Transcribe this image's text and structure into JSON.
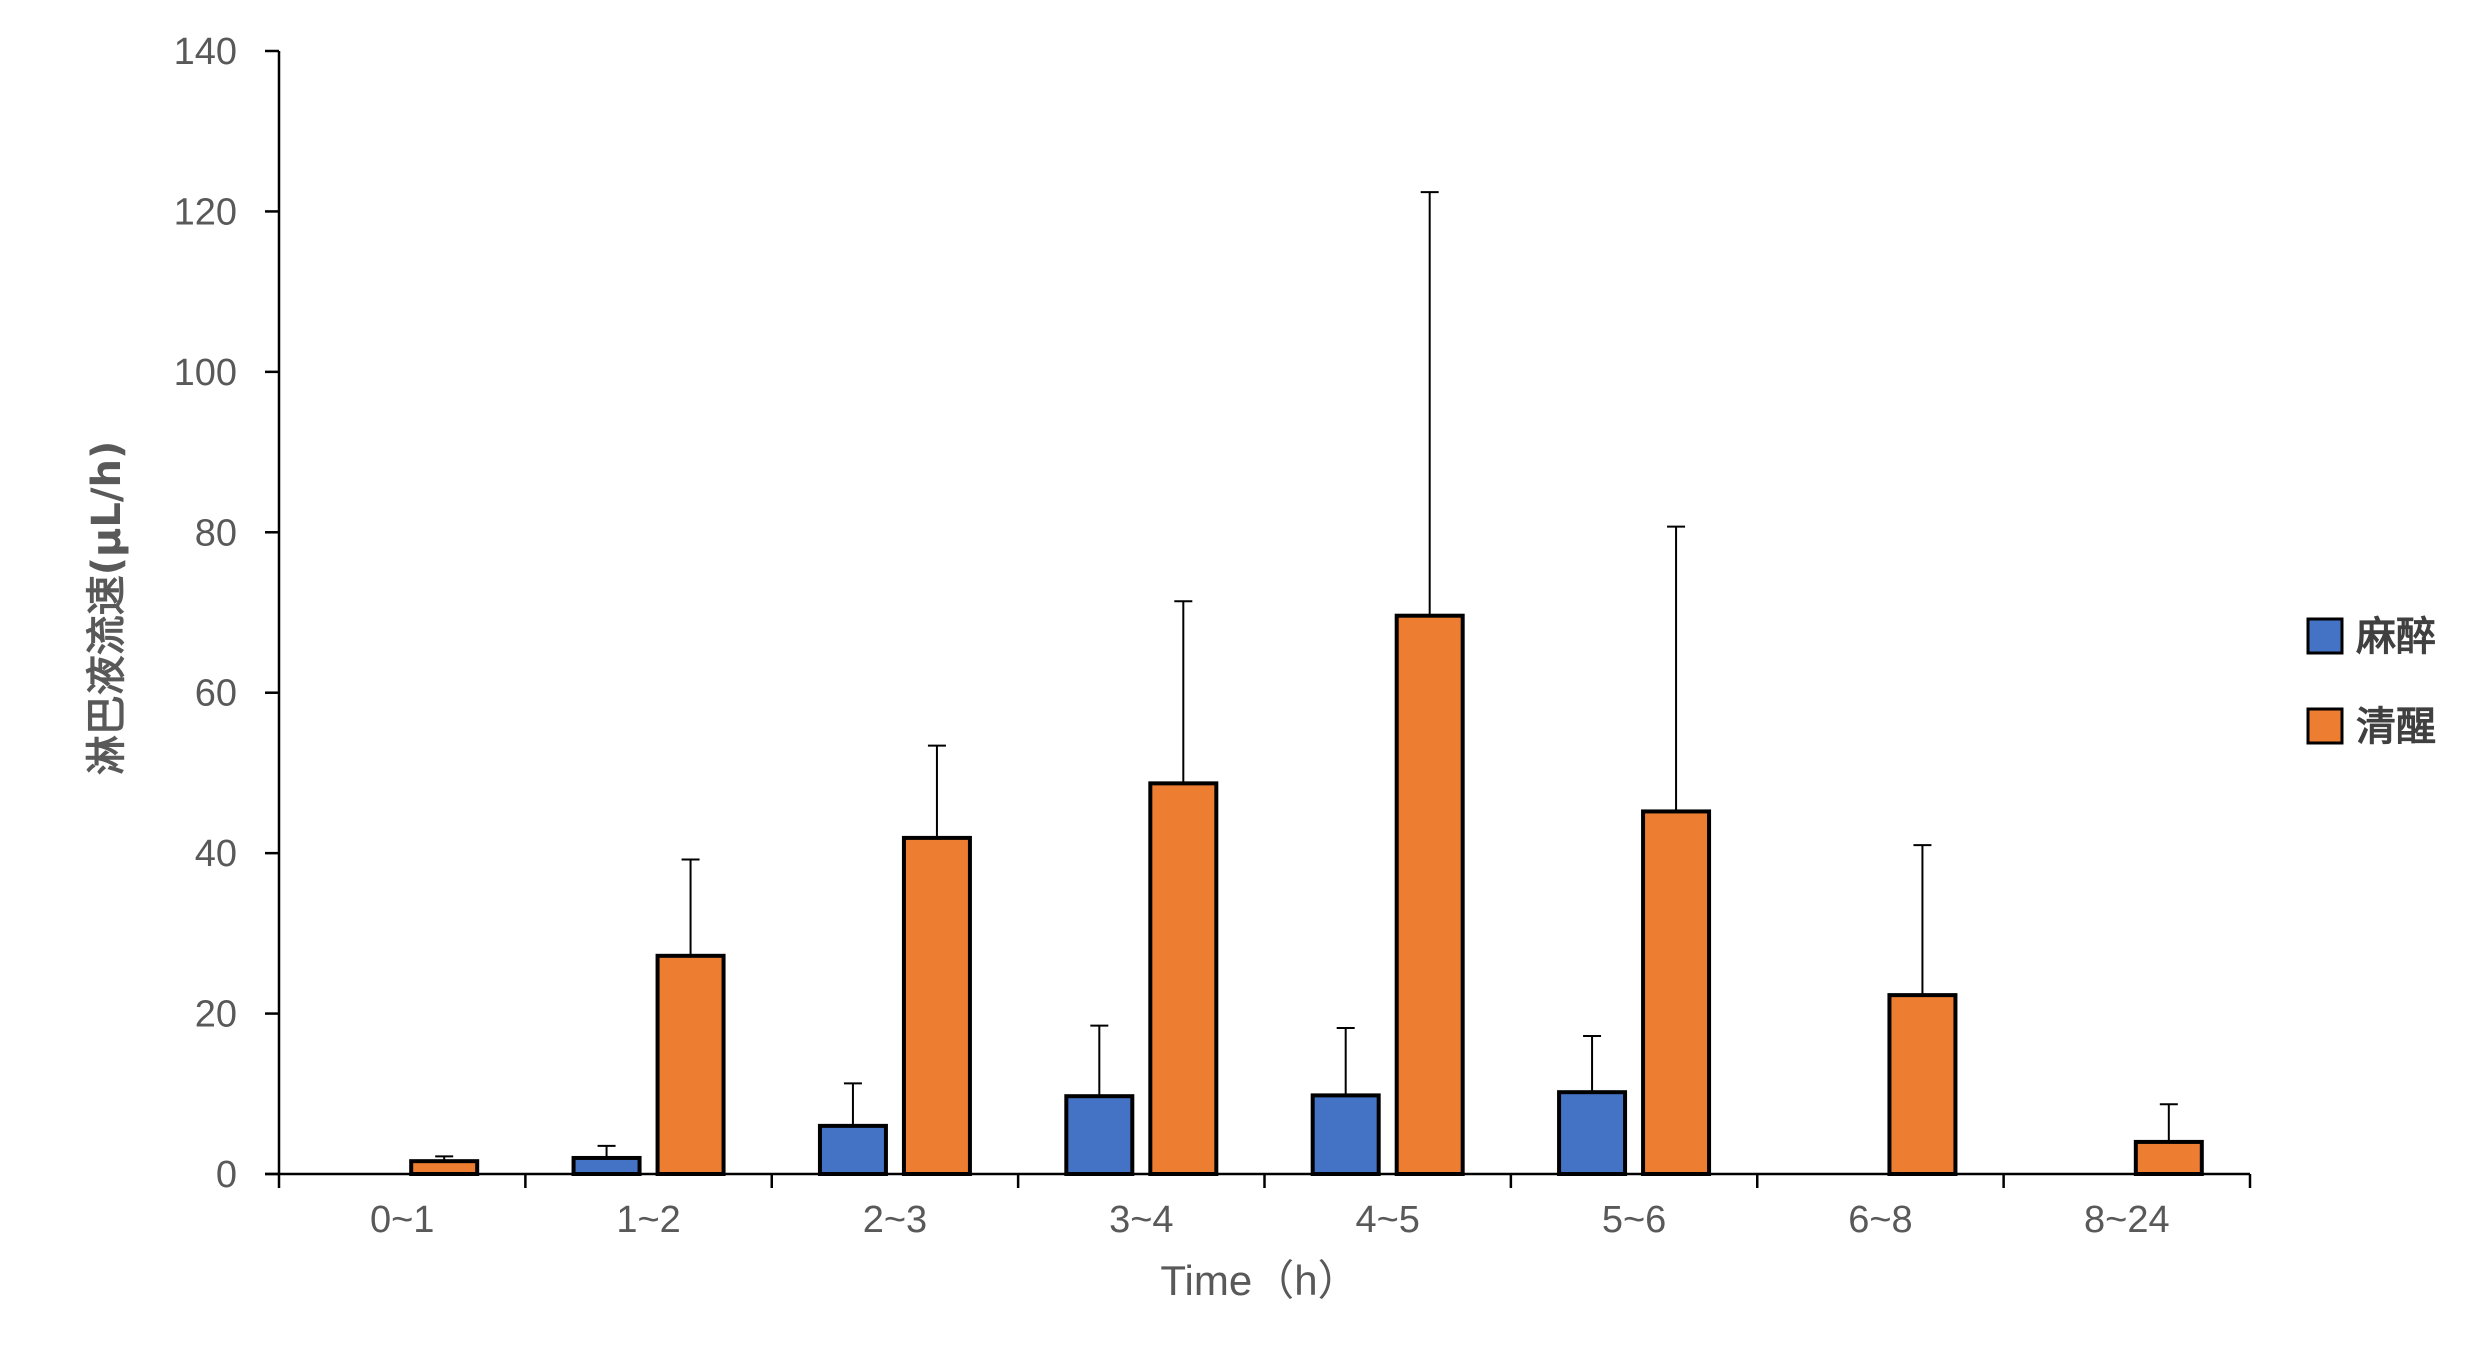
{
  "chart_data": {
    "type": "bar",
    "title": "",
    "xlabel": "Time（h）",
    "ylabel": "淋巴液流速(μL/h)",
    "ylim": [
      0,
      140
    ],
    "yticks": [
      0,
      20,
      40,
      60,
      80,
      100,
      120,
      140
    ],
    "grid": false,
    "legend_position": "right",
    "error_bars": "upper",
    "categories": [
      "0~1",
      "1~2",
      "2~3",
      "3~4",
      "4~5",
      "5~6",
      "6~8",
      "8~24"
    ],
    "series": [
      {
        "name": "麻醉",
        "color": "#4472C4",
        "values": [
          null,
          2,
          6,
          9.7,
          9.8,
          10.2,
          null,
          null
        ],
        "error_upper": [
          null,
          3.5,
          11.3,
          18.5,
          18.2,
          17.2,
          null,
          null
        ]
      },
      {
        "name": "清醒",
        "color": "#ED7D31",
        "values": [
          1.6,
          27.2,
          41.9,
          48.7,
          69.6,
          45.2,
          22.3,
          4
        ],
        "error_upper": [
          2.2,
          39.2,
          53.4,
          71.4,
          122.4,
          80.7,
          41,
          8.7
        ]
      }
    ]
  }
}
